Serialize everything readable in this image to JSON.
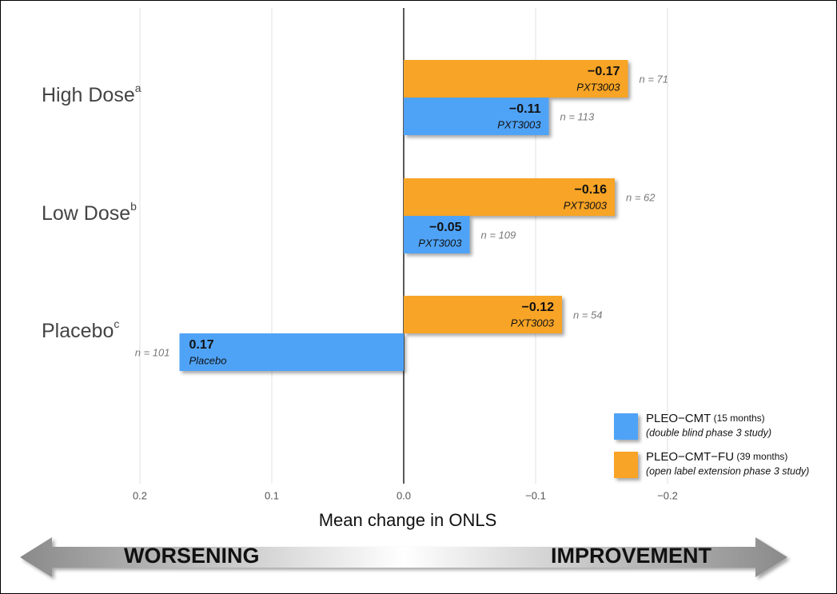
{
  "chart_data": {
    "type": "bar",
    "orientation": "horizontal",
    "categories": [
      "High Dose",
      "Low Dose",
      "Placebo"
    ],
    "category_superscripts": [
      "a",
      "b",
      "c"
    ],
    "series": [
      {
        "name": "PLEO−CMT",
        "period": "(15 months)",
        "description": "(double blind phase 3 study)",
        "color": "#4fa3f7",
        "values": [
          -0.11,
          -0.05,
          0.17
        ],
        "value_labels": [
          "−0.11",
          "−0.05",
          "0.17"
        ],
        "bar_labels": [
          "PXT3003",
          "PXT3003",
          "Placebo"
        ],
        "n_labels": [
          "n = 113",
          "n = 109",
          "n = 101"
        ]
      },
      {
        "name": "PLEO−CMT−FU",
        "period": "(39 months)",
        "description": "(open label extension phase 3 study)",
        "color": "#f8a427",
        "values": [
          -0.17,
          -0.16,
          -0.12
        ],
        "value_labels": [
          "−0.17",
          "−0.16",
          "−0.12"
        ],
        "bar_labels": [
          "PXT3003",
          "PXT3003",
          "PXT3003"
        ],
        "n_labels": [
          "n = 71",
          "n = 62",
          "n = 54"
        ]
      }
    ],
    "xlabel": "Mean change in ONLS",
    "xlim": [
      0.3,
      -0.3
    ],
    "xticks": [
      0.2,
      0.1,
      {
        "value": 0,
        "label": "0.0"
      },
      {
        "value": -0.1,
        "label": "−0.1"
      },
      {
        "value": -0.2,
        "label": "−0.2"
      }
    ],
    "grid": true,
    "legend_position": "lower right",
    "direction_labels": [
      "WORSENING",
      "IMPROVEMENT"
    ]
  }
}
